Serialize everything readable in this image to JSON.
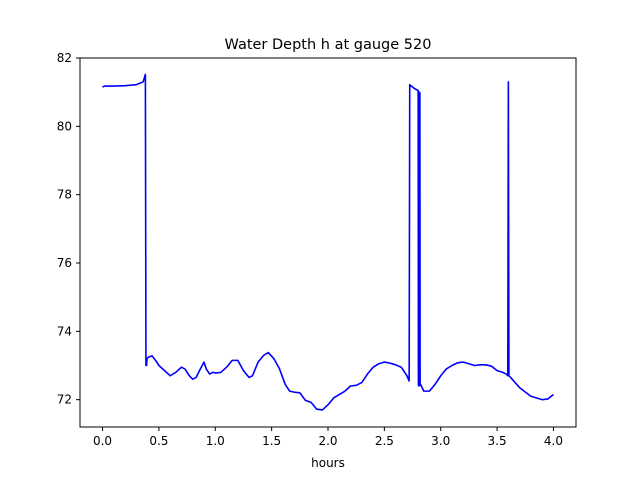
{
  "chart_data": {
    "type": "line",
    "title": "Water Depth h at gauge 520",
    "xlabel": "hours",
    "ylabel": "",
    "xlim": [
      -0.2,
      4.2
    ],
    "ylim": [
      71.2,
      82
    ],
    "grid": false,
    "x_ticks": [
      0.0,
      0.5,
      1.0,
      1.5,
      2.0,
      2.5,
      3.0,
      3.5,
      4.0
    ],
    "x_tick_labels": [
      "0.0",
      "0.5",
      "1.0",
      "1.5",
      "2.0",
      "2.5",
      "3.0",
      "3.5",
      "4.0"
    ],
    "y_ticks": [
      72,
      74,
      76,
      78,
      80,
      82
    ],
    "y_tick_labels": [
      "72",
      "74",
      "76",
      "78",
      "80",
      "82"
    ],
    "series": [
      {
        "color": "#0000ff",
        "x": [
          0.0,
          0.02,
          0.1,
          0.2,
          0.3,
          0.36,
          0.38,
          0.385,
          0.39,
          0.395,
          0.41,
          0.44,
          0.47,
          0.5,
          0.55,
          0.6,
          0.65,
          0.7,
          0.73,
          0.77,
          0.8,
          0.83,
          0.86,
          0.9,
          0.92,
          0.95,
          0.98,
          1.0,
          1.05,
          1.1,
          1.15,
          1.2,
          1.25,
          1.3,
          1.33,
          1.38,
          1.43,
          1.47,
          1.52,
          1.57,
          1.62,
          1.66,
          1.7,
          1.75,
          1.8,
          1.85,
          1.9,
          1.95,
          2.0,
          2.05,
          2.1,
          2.15,
          2.2,
          2.25,
          2.3,
          2.35,
          2.4,
          2.45,
          2.5,
          2.55,
          2.6,
          2.65,
          2.7,
          2.72,
          2.725,
          2.73,
          2.77,
          2.8,
          2.802,
          2.805,
          2.81,
          2.815,
          2.817,
          2.82,
          2.85,
          2.9,
          2.95,
          3.0,
          3.05,
          3.1,
          3.15,
          3.2,
          3.25,
          3.3,
          3.35,
          3.4,
          3.45,
          3.5,
          3.55,
          3.58,
          3.595,
          3.6,
          3.605,
          3.62,
          3.7,
          3.8,
          3.9,
          3.95,
          4.0
        ],
        "y": [
          81.15,
          81.18,
          81.18,
          81.19,
          81.22,
          81.3,
          81.52,
          73.0,
          73.0,
          73.2,
          73.25,
          73.28,
          73.15,
          73.0,
          72.85,
          72.7,
          72.8,
          72.95,
          72.9,
          72.7,
          72.6,
          72.65,
          72.85,
          73.1,
          72.9,
          72.75,
          72.8,
          72.78,
          72.8,
          72.95,
          73.15,
          73.15,
          72.85,
          72.65,
          72.7,
          73.1,
          73.3,
          73.38,
          73.2,
          72.9,
          72.45,
          72.25,
          72.22,
          72.2,
          71.98,
          71.92,
          71.72,
          71.7,
          71.85,
          72.05,
          72.15,
          72.25,
          72.4,
          72.42,
          72.5,
          72.75,
          72.95,
          73.05,
          73.1,
          73.07,
          73.02,
          72.95,
          72.7,
          72.55,
          81.22,
          81.2,
          81.1,
          81.05,
          72.45,
          72.4,
          81.0,
          80.98,
          72.42,
          72.45,
          72.25,
          72.25,
          72.45,
          72.7,
          72.9,
          73.0,
          73.08,
          73.1,
          73.05,
          73.0,
          73.02,
          73.02,
          72.98,
          72.85,
          72.8,
          72.75,
          72.7,
          81.3,
          72.7,
          72.65,
          72.35,
          72.1,
          72.0,
          72.02,
          72.15
        ]
      }
    ]
  }
}
